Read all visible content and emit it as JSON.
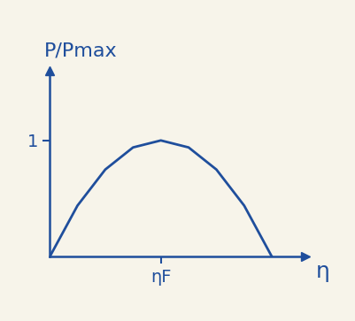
{
  "chart_data": {
    "type": "line",
    "y_label": "P/Pmax",
    "x_label": "η",
    "x": [
      0,
      0.25,
      0.5,
      0.75,
      1,
      1.25,
      1.5,
      1.75,
      2
    ],
    "values": [
      0,
      0.44,
      0.75,
      0.94,
      1,
      0.94,
      0.75,
      0.44,
      0
    ],
    "color": "#1f4e9c",
    "xlim": [
      0,
      2.3
    ],
    "ylim": [
      0,
      1.6
    ],
    "xticks": [
      {
        "value": 1,
        "label": "ηF"
      }
    ],
    "yticks": [
      1
    ],
    "grid": false
  }
}
